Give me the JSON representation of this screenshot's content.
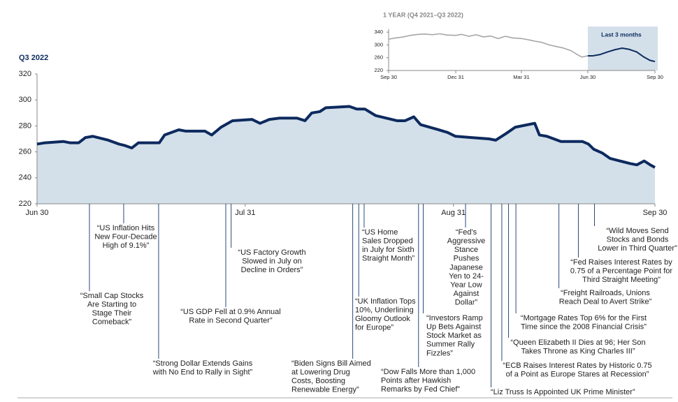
{
  "chart_data": [
    {
      "type": "area",
      "title": "Q3 2022",
      "color": "#0d2a5e",
      "fill": "#d3e0ea",
      "x": [
        0,
        1.2,
        3.9,
        4.9,
        6.2,
        7.2,
        8.3,
        10.6,
        12.2,
        13.0,
        14.1,
        15.1,
        18.2,
        19.0,
        21.1,
        22.1,
        25.0,
        26.0,
        27.4,
        29.1,
        32.0,
        33.2,
        34.6,
        36.1,
        38.7,
        39.9,
        40.9,
        42.1,
        43.0,
        46.5,
        47.6,
        48.8,
        50.4,
        53.6,
        54.8,
        56.1,
        57.1,
        59.8,
        61.1,
        62.3,
        64.7,
        67.3,
        68.3,
        69.8,
        71.2,
        74.1,
        74.8,
        75.9,
        78.0,
        81.2,
        82.1,
        82.9,
        84.2,
        85.3,
        88.3,
        89.3,
        90.4,
        91.3,
        92.0
      ],
      "values": [
        266,
        267,
        268,
        267,
        267,
        271,
        272,
        269,
        266,
        265,
        263,
        267,
        267,
        273,
        277,
        276,
        276,
        273,
        279,
        284,
        285,
        282,
        285,
        286,
        286,
        284,
        290,
        291,
        294,
        295,
        293,
        293,
        288,
        284,
        284,
        287,
        281,
        277,
        275,
        272,
        271,
        270,
        269,
        274,
        279,
        282,
        273,
        272,
        268,
        268,
        266,
        262,
        259,
        255,
        251,
        250,
        253,
        250,
        248
      ],
      "xlim": [
        0,
        92
      ],
      "xticks": [
        {
          "value": 0,
          "label": "Jun 30"
        },
        {
          "value": 31,
          "label": "Jul 31"
        },
        {
          "value": 62,
          "label": "Aug 31"
        },
        {
          "value": 92,
          "label": "Sep 30"
        }
      ],
      "ylim": [
        220,
        320
      ],
      "yticks": [
        220,
        240,
        260,
        280,
        300,
        320
      ],
      "annotations": [
        {
          "x": 12.9,
          "lines": [
            "“US Inflation Hits",
            "New Four-Decade",
            "High of 9.1%”"
          ]
        },
        {
          "x": 7.8,
          "lines": [
            "“Small Cap Stocks",
            "Are Starting to",
            "Stage Their",
            "Comeback”"
          ]
        },
        {
          "x": 18.1,
          "lines": [
            "“Strong Dollar Extends Gains",
            "with No End to Rally in Sight”"
          ]
        },
        {
          "x": 28.1,
          "lines": [
            "“US GDP Fell at 0.9% Annual",
            "Rate in Second Quarter”"
          ]
        },
        {
          "x": 28.9,
          "lines": [
            "“US Factory Growth",
            "Slowed in July on",
            "Decline in Orders”"
          ]
        },
        {
          "x": 47.0,
          "lines": [
            "“Biden Signs Bill Aimed",
            "at Lowering Drug",
            "Costs, Boosting",
            "Renewable Energy”"
          ]
        },
        {
          "x": 47.9,
          "lines": [
            "“UK Inflation Tops",
            "10%, Underlining",
            "Gloomy Outlook",
            "for Europe”"
          ]
        },
        {
          "x": 48.7,
          "lines": [
            "“US Home",
            "Sales Dropped",
            "in July for Sixth",
            "Straight Month”"
          ]
        },
        {
          "x": 56.8,
          "lines": [
            "“Dow Falls More than 1,000",
            "Points after Hawkish",
            "Remarks by Fed Chief”"
          ]
        },
        {
          "x": 57.5,
          "lines": [
            "“Investors Ramp",
            "Up Bets Against",
            "Stock Market as",
            "Summer Rally",
            "Fizzles”"
          ]
        },
        {
          "x": 63.8,
          "lines": [
            "“Fed’s",
            "Aggressive",
            "Stance",
            "Pushes",
            "Japanese",
            "Yen to 24-",
            "Year Low",
            "Against",
            "Dollar”"
          ]
        },
        {
          "x": 67.6,
          "lines": [
            "“Liz Truss Is Appointed UK Prime Minister”"
          ]
        },
        {
          "x": 69.2,
          "lines": [
            "“ECB Raises Interest Rates by Historic 0.75",
            "of a Point as Europe Stares at Recession”"
          ]
        },
        {
          "x": 70.2,
          "lines": [
            "“Queen Elizabeth II Dies at 96; Her Son",
            "Takes Throne as King Charles III”"
          ]
        },
        {
          "x": 71.3,
          "lines": [
            "“Mortgage Rates Top 6% for the First",
            "Time since the 2008 Financial Crisis”"
          ]
        },
        {
          "x": 77.7,
          "lines": [
            "“Freight Railroads, Unions",
            "Reach Deal to Avert Strike”"
          ]
        },
        {
          "x": 80.6,
          "lines": [
            "“Fed Raises Interest Rates by",
            "0.75 of a Percentage Point for",
            "Third Straight Meeting”"
          ]
        },
        {
          "x": 83.0,
          "lines": [
            "“Wild Moves Send",
            "Stocks and Bonds",
            "Lower in Third Quarter”"
          ]
        }
      ]
    },
    {
      "type": "line",
      "title": "1 YEAR (Q4 2021–Q3 2022)",
      "series": [
        {
          "color": "#a6a6a6",
          "x": [
            0,
            10,
            20,
            30,
            40,
            50,
            60,
            70,
            80,
            92,
            100,
            110,
            120,
            130,
            140,
            150,
            160,
            170,
            182,
            190,
            200,
            210,
            220,
            230,
            240,
            250,
            260,
            265,
            273
          ],
          "values": [
            318,
            322,
            325,
            330,
            333,
            334,
            332,
            335,
            331,
            330,
            333,
            327,
            332,
            325,
            328,
            320,
            327,
            322,
            320,
            317,
            312,
            308,
            300,
            295,
            290,
            282,
            268,
            262,
            266
          ]
        },
        {
          "color": "#0d2a5e",
          "x": [
            273,
            280,
            290,
            300,
            310,
            320,
            330,
            340,
            350,
            358,
            365
          ],
          "values": [
            266,
            266,
            270,
            278,
            285,
            290,
            286,
            278,
            262,
            252,
            248
          ]
        }
      ],
      "highlight": {
        "label": "Last 3 months",
        "span": [
          273,
          365
        ],
        "color": "#d3e0ea"
      },
      "xlim": [
        0,
        365
      ],
      "xticks": [
        {
          "value": 0,
          "label": "Sep 30"
        },
        {
          "value": 92,
          "label": "Dec 31"
        },
        {
          "value": 182,
          "label": "Mar 31"
        },
        {
          "value": 273,
          "label": "Jun 30"
        },
        {
          "value": 365,
          "label": "Sep 30"
        }
      ],
      "ylim": [
        220,
        350
      ],
      "yticks": [
        220,
        260,
        300,
        340
      ]
    }
  ]
}
